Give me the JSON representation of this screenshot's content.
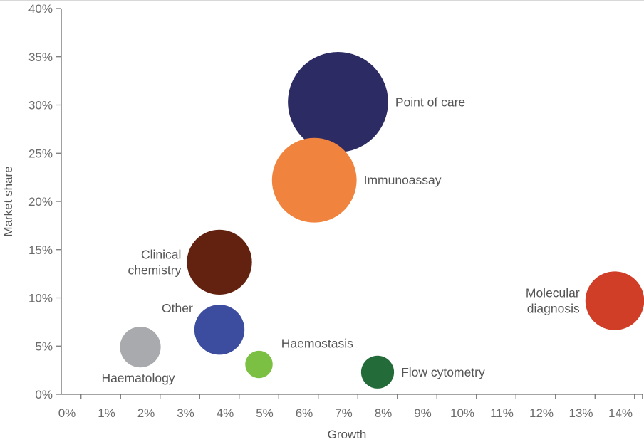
{
  "chart_data": {
    "type": "scatter",
    "title": "",
    "xlabel": "Growth",
    "ylabel": "Market share",
    "xlim": [
      0,
      14.7
    ],
    "ylim": [
      0,
      40
    ],
    "x_ticks": [
      "0%",
      "1%",
      "2%",
      "3%",
      "4%",
      "5%",
      "6%",
      "7%",
      "8%",
      "9%",
      "10%",
      "11%",
      "12%",
      "13%",
      "14%"
    ],
    "y_ticks": [
      "0%",
      "5%",
      "10%",
      "15%",
      "20%",
      "25%",
      "30%",
      "35%",
      "40%"
    ],
    "grid": false,
    "legend": "none",
    "points": [
      {
        "label": "Point of care",
        "label_lines": [
          "Point of care"
        ],
        "x": 7.0,
        "y": 30.3,
        "size": 1.28,
        "color": "#2c2b63",
        "label_pos": "right"
      },
      {
        "label": "Immunoassay",
        "label_lines": [
          "Immunoassay"
        ],
        "x": 6.4,
        "y": 22.2,
        "size": 1.08,
        "color": "#f0843e",
        "label_pos": "right"
      },
      {
        "label": "Clinical chemistry",
        "label_lines": [
          "Clinical",
          "chemistry"
        ],
        "x": 4.0,
        "y": 13.7,
        "size": 0.83,
        "color": "#63220f",
        "label_pos": "left"
      },
      {
        "label": "Other",
        "label_lines": [
          "Other"
        ],
        "x": 4.0,
        "y": 6.7,
        "size": 0.64,
        "color": "#3c4da0",
        "label_pos": "upper-left"
      },
      {
        "label": "Haematology",
        "label_lines": [
          "Haematology"
        ],
        "x": 2.0,
        "y": 4.9,
        "size": 0.52,
        "color": "#a9aaad",
        "label_pos": "below"
      },
      {
        "label": "Haemostasis",
        "label_lines": [
          "Haemostasis"
        ],
        "x": 5.0,
        "y": 3.1,
        "size": 0.35,
        "color": "#7bc043",
        "label_pos": "upper-right"
      },
      {
        "label": "Flow cytometry",
        "label_lines": [
          "Flow cytometry"
        ],
        "x": 8.0,
        "y": 2.3,
        "size": 0.42,
        "color": "#236b38",
        "label_pos": "right"
      },
      {
        "label": "Molecular diagnosis",
        "label_lines": [
          "Molecular",
          "diagnosis"
        ],
        "x": 14.0,
        "y": 9.7,
        "size": 0.75,
        "color": "#d03e27",
        "label_pos": "left"
      }
    ]
  }
}
